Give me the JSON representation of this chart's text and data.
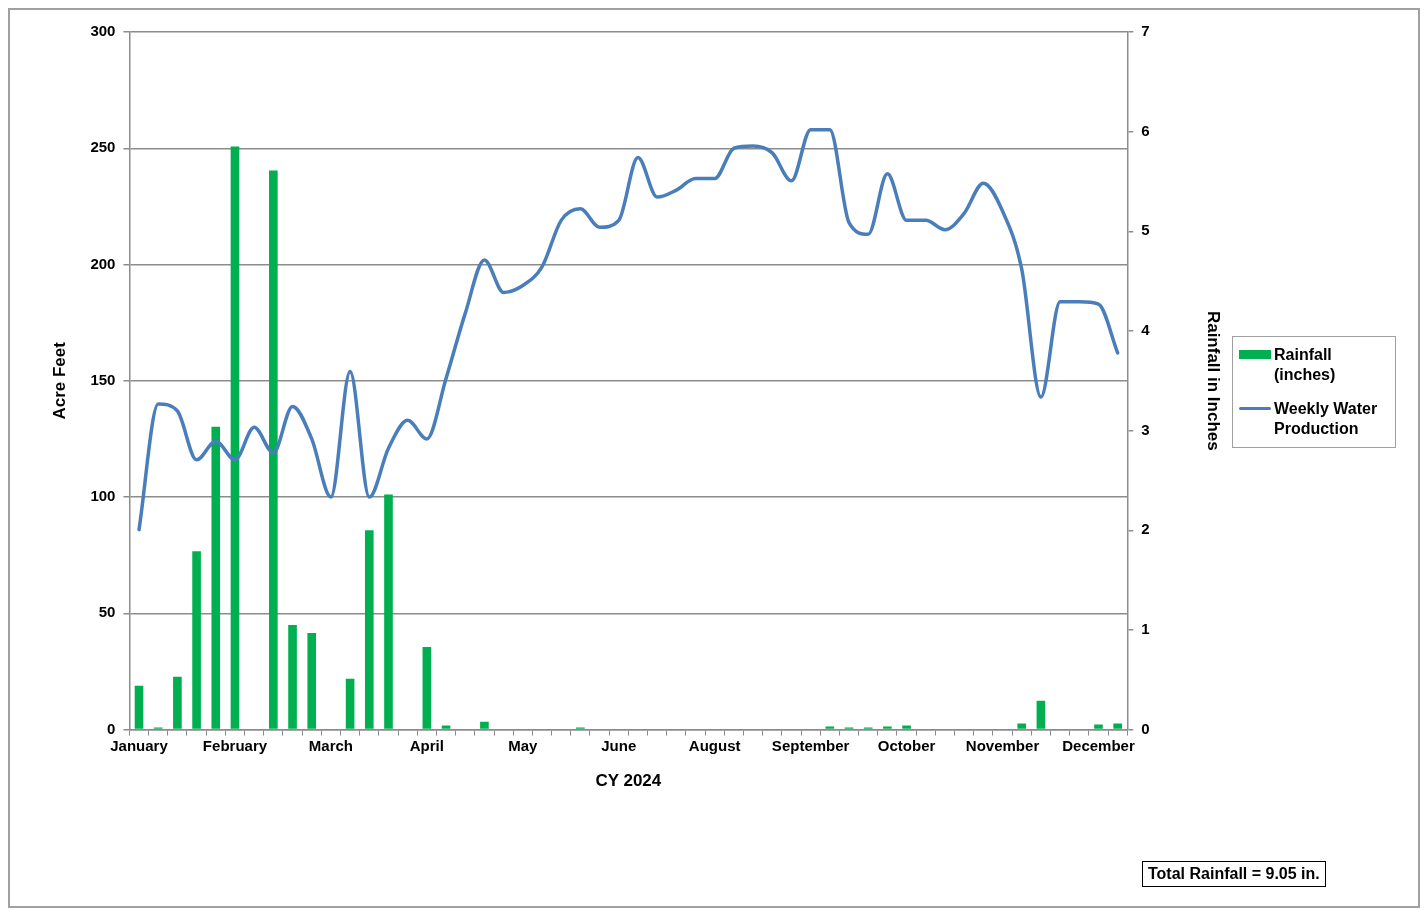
{
  "chart_data": {
    "type": "bar",
    "xlabel": "CY 2024",
    "ylabel": "Acre Feet",
    "y2label": "Rainfall in Inches",
    "categories": [
      "January",
      null,
      null,
      null,
      null,
      "February",
      null,
      null,
      null,
      null,
      "March",
      null,
      null,
      null,
      null,
      "April",
      null,
      null,
      null,
      null,
      "May",
      null,
      null,
      null,
      null,
      "June",
      null,
      null,
      null,
      null,
      "August",
      null,
      null,
      null,
      null,
      "September",
      null,
      null,
      null,
      null,
      "October",
      null,
      null,
      null,
      null,
      "November",
      null,
      null,
      null,
      null,
      "December",
      null
    ],
    "series": [
      {
        "name": "Rainfall (inches)",
        "axis": "y2",
        "color": "#00b050",
        "values": [
          0.44,
          0.02,
          0.53,
          1.79,
          3.04,
          5.85,
          0,
          5.61,
          1.05,
          0.97,
          0,
          0.51,
          2.0,
          2.36,
          0,
          0.83,
          0.04,
          0,
          0.08,
          0,
          0,
          0,
          0,
          0.02,
          0,
          0,
          0,
          0,
          0,
          0,
          0,
          0,
          0,
          0,
          0,
          0,
          0.03,
          0.02,
          0.02,
          0.03,
          0.04,
          0,
          0,
          0,
          0,
          0,
          0.06,
          0.29,
          0,
          0,
          0.05,
          0.06
        ]
      },
      {
        "name": "Weekly Water Production",
        "type": "line",
        "axis": "y",
        "color": "#4a7ebb",
        "values": [
          86,
          140,
          137,
          116,
          124,
          116,
          130,
          119,
          139,
          125,
          100,
          154,
          100,
          121,
          133,
          125,
          151,
          179,
          202,
          188,
          191,
          199,
          219,
          224,
          216,
          219,
          246,
          229,
          232,
          237,
          237,
          250,
          251,
          248,
          236,
          258,
          258,
          218,
          213,
          239,
          219,
          219,
          215,
          222,
          235,
          223,
          198,
          143,
          184,
          184,
          183,
          162
        ]
      }
    ],
    "ylim": [
      0,
      300
    ],
    "yticks": [
      0,
      50,
      100,
      150,
      200,
      250,
      300
    ],
    "y2lim": [
      0,
      7
    ],
    "y2ticks": [
      0,
      1,
      2,
      3,
      4,
      5,
      6,
      7
    ],
    "grid": "y",
    "legend": "right",
    "marker": "none",
    "line_style": "solid",
    "annotations": [
      "Total Rainfall = 9.05 in."
    ]
  }
}
